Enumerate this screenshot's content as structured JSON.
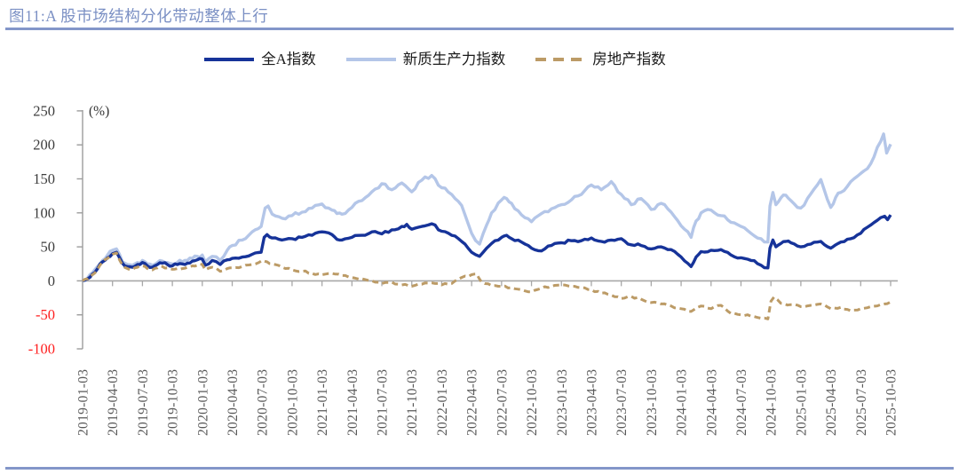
{
  "page": {
    "figure_title": "图11:A 股市场结构分化带动整体上行"
  },
  "colors": {
    "title_text": "#7B90C4",
    "rule_blue": "#8396C9",
    "axis_line": "#9C9C9C",
    "zero_line": "#A8A8A8",
    "y_label": "#3D3D3D",
    "y_label_negative": "#FF1F1F",
    "x_label": "#595959",
    "unit_label": "#333333"
  },
  "chart_data": {
    "type": "line",
    "title": "图11:A 股市场结构分化带动整体上行",
    "xlabel": "",
    "ylabel": "(%)",
    "unit_label": "(%)",
    "ylim": [
      -100,
      250
    ],
    "y_ticks": [
      250,
      200,
      150,
      100,
      50,
      0,
      -50,
      -100
    ],
    "grid": "zero-baseline-only",
    "legend_position": "top-center",
    "x_tick_interval_months": 3,
    "x_labels": [
      "2019-01-03",
      "2019-04-03",
      "2019-07-03",
      "2019-10-03",
      "2020-01-03",
      "2020-04-03",
      "2020-07-03",
      "2020-10-03",
      "2021-01-03",
      "2021-04-03",
      "2021-07-03",
      "2021-10-03",
      "2022-01-03",
      "2022-04-03",
      "2022-07-03",
      "2022-10-03",
      "2023-01-03",
      "2023-04-03",
      "2023-07-03",
      "2023-10-03",
      "2024-01-03",
      "2024-04-03",
      "2024-07-03",
      "2024-10-03",
      "2025-01-03",
      "2025-04-03",
      "2025-07-03",
      "2025-10-03"
    ],
    "series": [
      {
        "name": "全A指数",
        "style": "solid",
        "color": "#163399",
        "points": [
          [
            0,
            0
          ],
          [
            0.5,
            3
          ],
          [
            1,
            10
          ],
          [
            1.5,
            18
          ],
          [
            2,
            28
          ],
          [
            2.5,
            34
          ],
          [
            3,
            40
          ],
          [
            3.4,
            42
          ],
          [
            4,
            26
          ],
          [
            4.5,
            21
          ],
          [
            5,
            20
          ],
          [
            5.5,
            24
          ],
          [
            6,
            27
          ],
          [
            6.5,
            22
          ],
          [
            7,
            20
          ],
          [
            7.5,
            24
          ],
          [
            8,
            26
          ],
          [
            8.5,
            24
          ],
          [
            9,
            22
          ],
          [
            9.5,
            24
          ],
          [
            10,
            25
          ],
          [
            10.5,
            26
          ],
          [
            11,
            29
          ],
          [
            11.5,
            31
          ],
          [
            12,
            32
          ],
          [
            12.3,
            23
          ],
          [
            13,
            30
          ],
          [
            13.8,
            24
          ],
          [
            14.5,
            31
          ],
          [
            15,
            33
          ],
          [
            16,
            35
          ],
          [
            17,
            39
          ],
          [
            17.9,
            42
          ],
          [
            18.2,
            64
          ],
          [
            18.5,
            68
          ],
          [
            19,
            63
          ],
          [
            20,
            60
          ],
          [
            21,
            62
          ],
          [
            22,
            64
          ],
          [
            23,
            67
          ],
          [
            24,
            72
          ],
          [
            25,
            68
          ],
          [
            25.5,
            61
          ],
          [
            26,
            60
          ],
          [
            27,
            64
          ],
          [
            28,
            67
          ],
          [
            29,
            72
          ],
          [
            30,
            69
          ],
          [
            31,
            75
          ],
          [
            32,
            80
          ],
          [
            32.5,
            83
          ],
          [
            33,
            76
          ],
          [
            34,
            80
          ],
          [
            35,
            84
          ],
          [
            36,
            73
          ],
          [
            37,
            67
          ],
          [
            38,
            58
          ],
          [
            39,
            42
          ],
          [
            39.8,
            36
          ],
          [
            40.5,
            48
          ],
          [
            41,
            55
          ],
          [
            42,
            64
          ],
          [
            42.5,
            67
          ],
          [
            43,
            62
          ],
          [
            44,
            57
          ],
          [
            45,
            48
          ],
          [
            46,
            44
          ],
          [
            47,
            52
          ],
          [
            48,
            56
          ],
          [
            49,
            59
          ],
          [
            50,
            59
          ],
          [
            51,
            63
          ],
          [
            52,
            58
          ],
          [
            53,
            60
          ],
          [
            54,
            62
          ],
          [
            55,
            53
          ],
          [
            56,
            52
          ],
          [
            57,
            47
          ],
          [
            58,
            50
          ],
          [
            59,
            46
          ],
          [
            60,
            35
          ],
          [
            61,
            21
          ],
          [
            61.5,
            35
          ],
          [
            62,
            43
          ],
          [
            63,
            45
          ],
          [
            64,
            46
          ],
          [
            65,
            38
          ],
          [
            66,
            34
          ],
          [
            67,
            30
          ],
          [
            68,
            23
          ],
          [
            68.7,
            19
          ],
          [
            68.9,
            48
          ],
          [
            69.2,
            60
          ],
          [
            69.5,
            50
          ],
          [
            70,
            55
          ],
          [
            70.5,
            58
          ],
          [
            71,
            56
          ],
          [
            72,
            50
          ],
          [
            73,
            54
          ],
          [
            74,
            58
          ],
          [
            75,
            48
          ],
          [
            75.5,
            53
          ],
          [
            76,
            57
          ],
          [
            77,
            62
          ],
          [
            78,
            70
          ],
          [
            79,
            82
          ],
          [
            80,
            93
          ],
          [
            80.4,
            95
          ],
          [
            80.7,
            90
          ],
          [
            81,
            97
          ]
        ]
      },
      {
        "name": "新质生产力指数",
        "style": "solid",
        "color": "#B4C6E8",
        "points": [
          [
            0,
            0
          ],
          [
            0.5,
            4
          ],
          [
            1,
            12
          ],
          [
            1.5,
            21
          ],
          [
            2,
            30
          ],
          [
            2.5,
            38
          ],
          [
            3,
            45
          ],
          [
            3.4,
            47
          ],
          [
            4,
            28
          ],
          [
            4.5,
            24
          ],
          [
            5,
            23
          ],
          [
            5.5,
            27
          ],
          [
            6,
            30
          ],
          [
            6.5,
            25
          ],
          [
            7,
            23
          ],
          [
            7.5,
            27
          ],
          [
            8,
            29
          ],
          [
            8.5,
            27
          ],
          [
            9,
            25
          ],
          [
            9.5,
            27
          ],
          [
            10,
            28
          ],
          [
            10.5,
            30
          ],
          [
            11,
            33
          ],
          [
            11.5,
            36
          ],
          [
            12,
            38
          ],
          [
            12.3,
            28
          ],
          [
            13,
            36
          ],
          [
            13.8,
            30
          ],
          [
            14.5,
            45
          ],
          [
            15,
            52
          ],
          [
            16,
            60
          ],
          [
            17,
            72
          ],
          [
            17.9,
            80
          ],
          [
            18.3,
            107
          ],
          [
            18.6,
            110
          ],
          [
            19,
            98
          ],
          [
            20,
            92
          ],
          [
            21,
            96
          ],
          [
            22,
            101
          ],
          [
            23,
            107
          ],
          [
            24,
            113
          ],
          [
            25,
            104
          ],
          [
            25.5,
            99
          ],
          [
            26,
            98
          ],
          [
            27,
            108
          ],
          [
            28,
            118
          ],
          [
            29,
            131
          ],
          [
            30,
            143
          ],
          [
            31,
            134
          ],
          [
            32,
            144
          ],
          [
            33,
            131
          ],
          [
            34,
            148
          ],
          [
            35,
            155
          ],
          [
            36,
            137
          ],
          [
            37,
            127
          ],
          [
            38,
            111
          ],
          [
            39,
            70
          ],
          [
            39.8,
            54
          ],
          [
            40.5,
            82
          ],
          [
            41,
            100
          ],
          [
            42,
            119
          ],
          [
            42.5,
            121
          ],
          [
            43,
            114
          ],
          [
            44,
            97
          ],
          [
            45,
            87
          ],
          [
            46,
            99
          ],
          [
            47,
            106
          ],
          [
            48,
            112
          ],
          [
            49,
            119
          ],
          [
            50,
            127
          ],
          [
            51,
            141
          ],
          [
            52,
            134
          ],
          [
            53,
            146
          ],
          [
            54,
            127
          ],
          [
            55,
            112
          ],
          [
            56,
            121
          ],
          [
            57,
            105
          ],
          [
            58,
            114
          ],
          [
            59,
            101
          ],
          [
            60,
            81
          ],
          [
            61,
            64
          ],
          [
            61.5,
            88
          ],
          [
            62,
            100
          ],
          [
            63,
            104
          ],
          [
            64,
            96
          ],
          [
            65,
            86
          ],
          [
            66,
            80
          ],
          [
            67,
            70
          ],
          [
            68,
            62
          ],
          [
            68.7,
            57
          ],
          [
            68.9,
            110
          ],
          [
            69.2,
            130
          ],
          [
            69.5,
            112
          ],
          [
            70,
            122
          ],
          [
            70.5,
            126
          ],
          [
            71,
            118
          ],
          [
            72,
            107
          ],
          [
            73,
            128
          ],
          [
            74,
            149
          ],
          [
            75,
            108
          ],
          [
            75.5,
            123
          ],
          [
            76,
            130
          ],
          [
            77,
            146
          ],
          [
            78,
            158
          ],
          [
            79,
            172
          ],
          [
            80,
            205
          ],
          [
            80.3,
            216
          ],
          [
            80.6,
            188
          ],
          [
            81,
            201
          ]
        ]
      },
      {
        "name": "房地产指数",
        "style": "dashed",
        "color": "#BC9B66",
        "points": [
          [
            0,
            0
          ],
          [
            0.5,
            3
          ],
          [
            1,
            9
          ],
          [
            1.5,
            17
          ],
          [
            2,
            27
          ],
          [
            2.5,
            33
          ],
          [
            3,
            39
          ],
          [
            3.4,
            41
          ],
          [
            4,
            23
          ],
          [
            4.5,
            18
          ],
          [
            5,
            17
          ],
          [
            5.5,
            20
          ],
          [
            6,
            22
          ],
          [
            6.5,
            18
          ],
          [
            7,
            16
          ],
          [
            7.5,
            19
          ],
          [
            8,
            21
          ],
          [
            8.5,
            19
          ],
          [
            9,
            17
          ],
          [
            9.5,
            18
          ],
          [
            10,
            18
          ],
          [
            10.5,
            20
          ],
          [
            11,
            22
          ],
          [
            11.5,
            23
          ],
          [
            12,
            24
          ],
          [
            12.3,
            16
          ],
          [
            13,
            20
          ],
          [
            13.8,
            14
          ],
          [
            14.5,
            18
          ],
          [
            15,
            19
          ],
          [
            16,
            21
          ],
          [
            17,
            24
          ],
          [
            18,
            30
          ],
          [
            18.5,
            28
          ],
          [
            19,
            25
          ],
          [
            20,
            20
          ],
          [
            21,
            16
          ],
          [
            22,
            14
          ],
          [
            23,
            11
          ],
          [
            24,
            9
          ],
          [
            25,
            11
          ],
          [
            26,
            8
          ],
          [
            27,
            5
          ],
          [
            28,
            3
          ],
          [
            29,
            0
          ],
          [
            30,
            -4
          ],
          [
            31,
            -2
          ],
          [
            32,
            -6
          ],
          [
            33,
            -8
          ],
          [
            34,
            -5
          ],
          [
            35,
            -3
          ],
          [
            36,
            -6
          ],
          [
            37,
            -4
          ],
          [
            38,
            5
          ],
          [
            39,
            9
          ],
          [
            39.5,
            10
          ],
          [
            40,
            -2
          ],
          [
            41,
            -7
          ],
          [
            42,
            -8
          ],
          [
            43,
            -10
          ],
          [
            44,
            -13
          ],
          [
            45,
            -16
          ],
          [
            46,
            -11
          ],
          [
            47,
            -8
          ],
          [
            48,
            -6
          ],
          [
            49,
            -8
          ],
          [
            50,
            -10
          ],
          [
            51,
            -13
          ],
          [
            52,
            -18
          ],
          [
            53,
            -21
          ],
          [
            54,
            -26
          ],
          [
            55,
            -23
          ],
          [
            56,
            -27
          ],
          [
            57,
            -32
          ],
          [
            58,
            -34
          ],
          [
            59,
            -37
          ],
          [
            60,
            -41
          ],
          [
            61,
            -45
          ],
          [
            62,
            -37
          ],
          [
            63,
            -41
          ],
          [
            64,
            -36
          ],
          [
            65,
            -48
          ],
          [
            66,
            -50
          ],
          [
            67,
            -52
          ],
          [
            68,
            -55
          ],
          [
            68.7,
            -56
          ],
          [
            69,
            -30
          ],
          [
            69.3,
            -24
          ],
          [
            70,
            -33
          ],
          [
            71,
            -35
          ],
          [
            72,
            -38
          ],
          [
            73,
            -36
          ],
          [
            74,
            -34
          ],
          [
            75,
            -41
          ],
          [
            76,
            -39
          ],
          [
            77,
            -44
          ],
          [
            78,
            -41
          ],
          [
            79,
            -38
          ],
          [
            80,
            -35
          ],
          [
            81,
            -31
          ]
        ]
      }
    ]
  }
}
